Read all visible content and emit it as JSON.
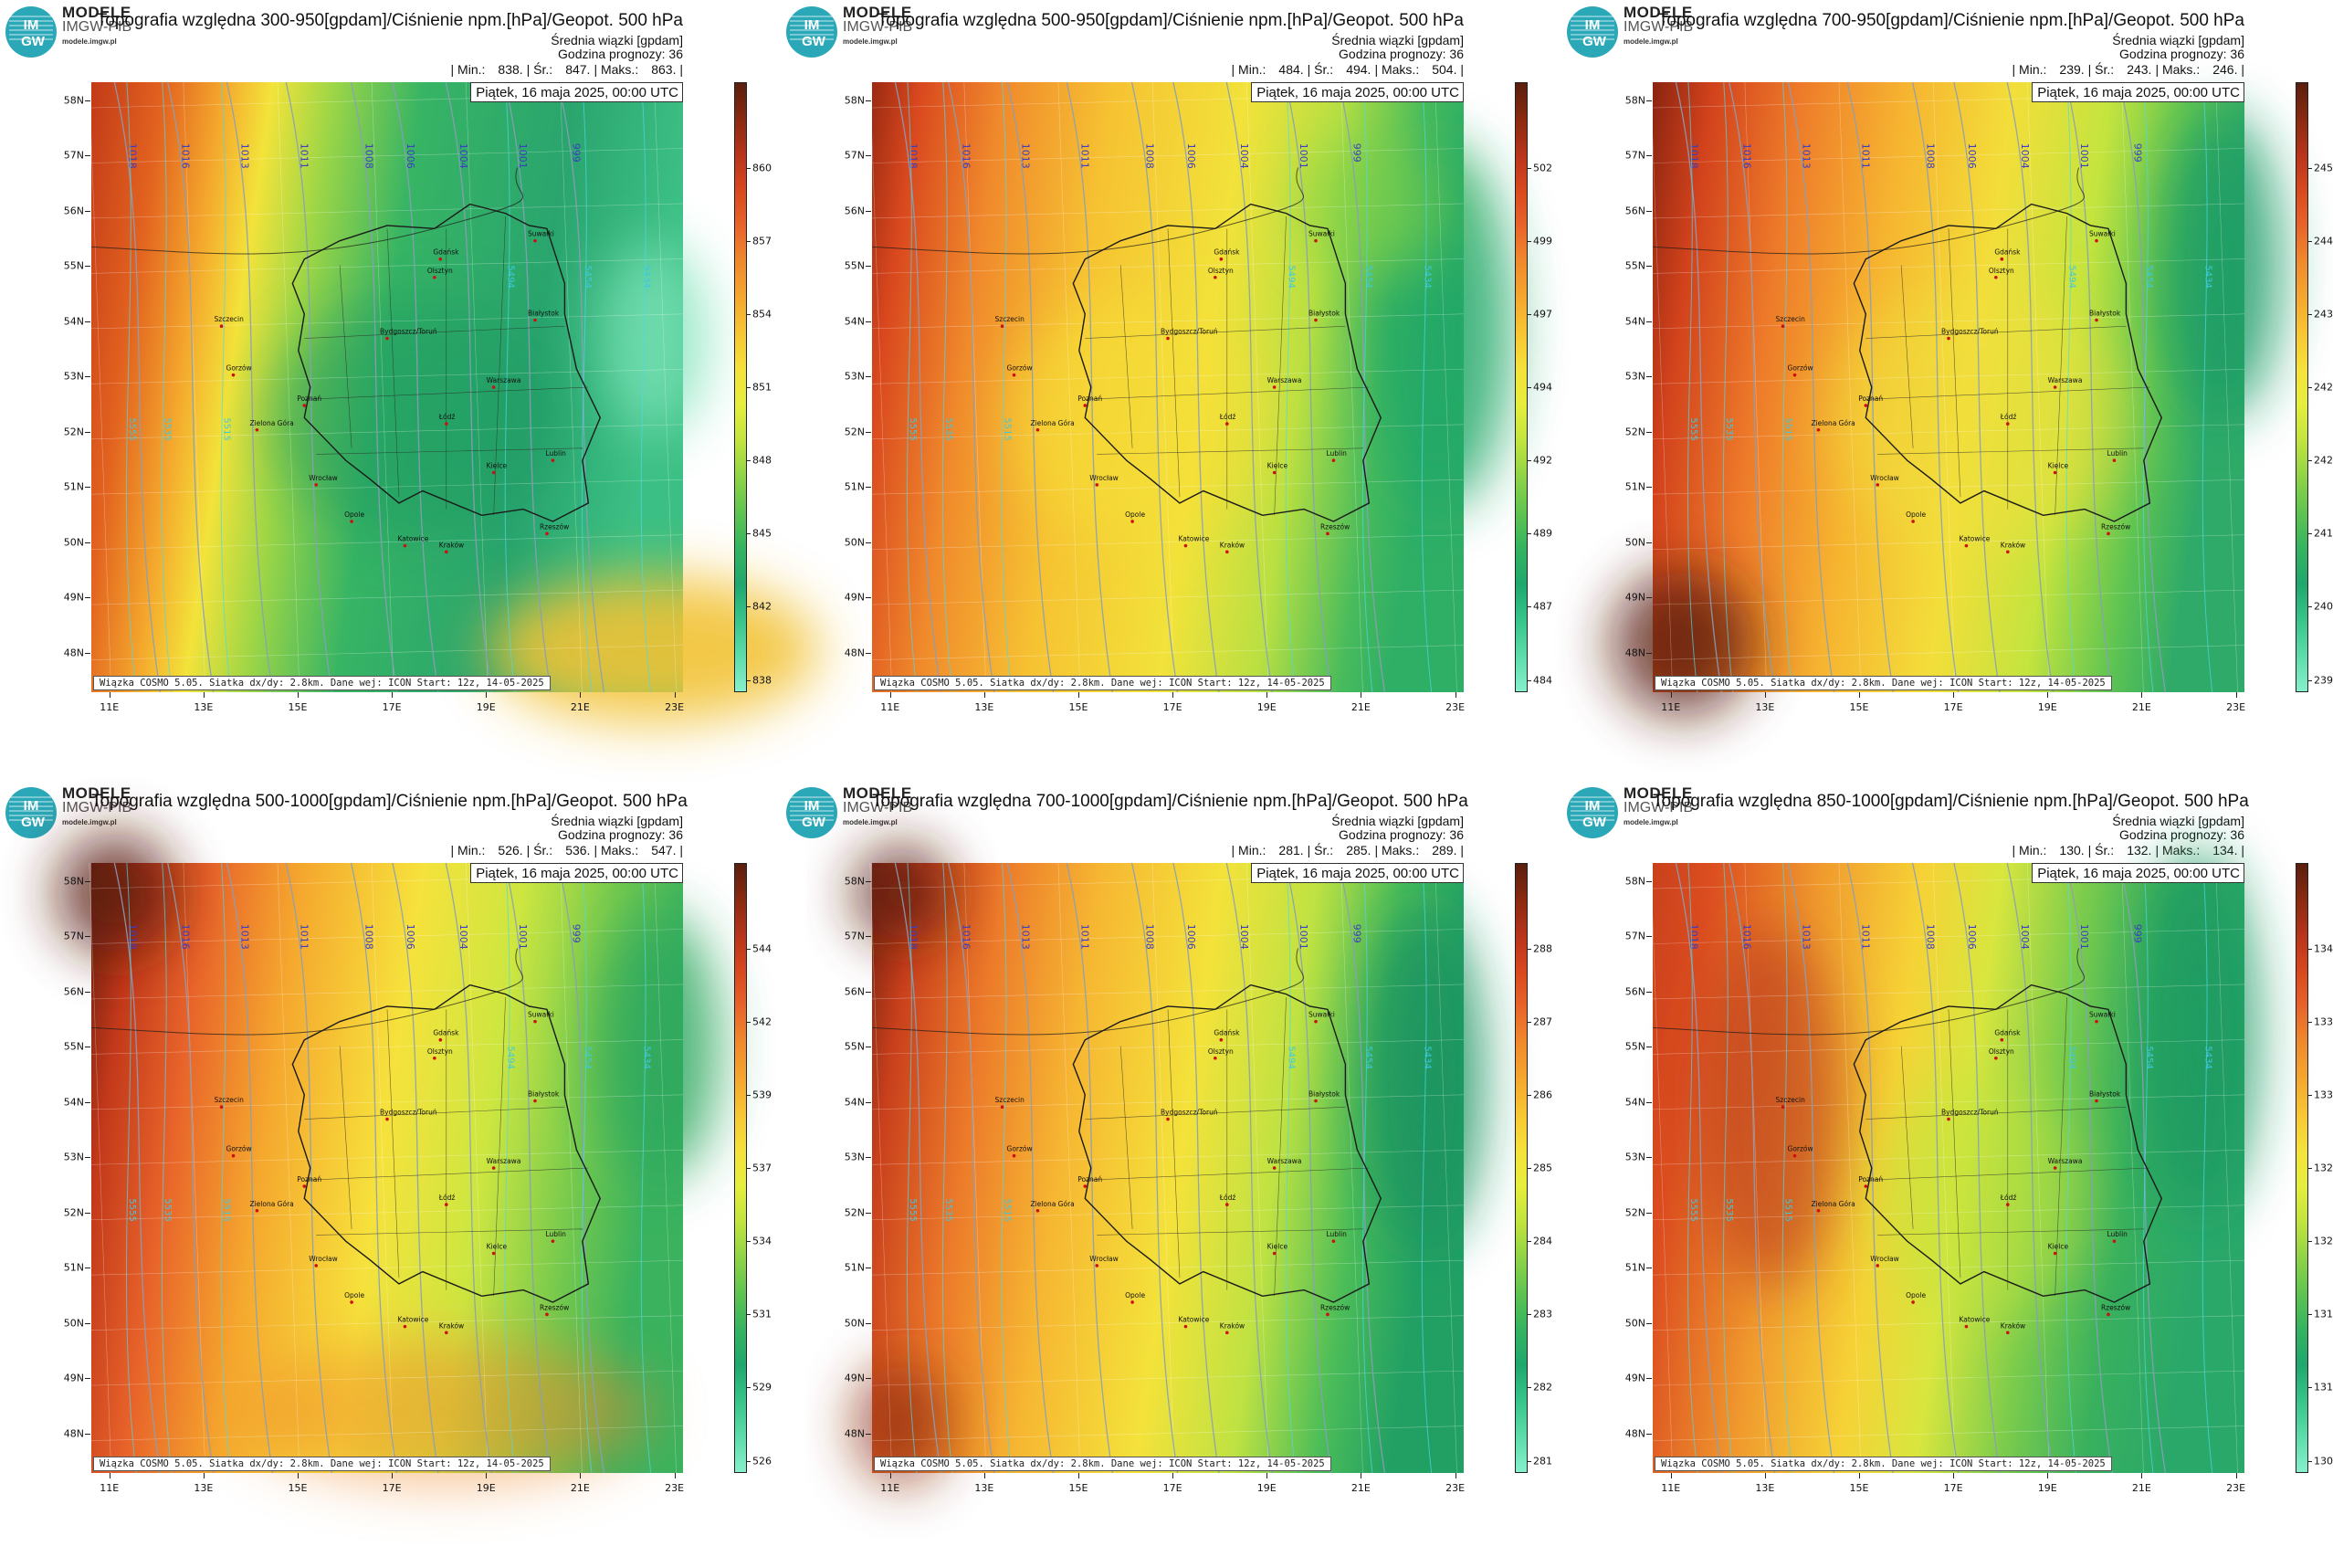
{
  "panels": [
    {
      "title": "Topografia względna 300-950[gpdam]/Ciśnienie npm.[hPa]/Geopot. 500 hPa",
      "subtitle": "Średnia wiązki [gpdam]",
      "forecast_hour": "Godzina prognozy: 36",
      "stats": {
        "min_label": "| Min.:",
        "min": "838.",
        "avg_label": "| Śr.:",
        "avg": "847.",
        "max_label": "| Maks.:",
        "max": "863. |"
      },
      "colorbar_ticks": [
        "860",
        "857",
        "854",
        "851",
        "848",
        "845",
        "842",
        "838"
      ],
      "scheme": "p1"
    },
    {
      "title": "Topografia względna 500-950[gpdam]/Ciśnienie npm.[hPa]/Geopot. 500 hPa",
      "subtitle": "Średnia wiązki [gpdam]",
      "forecast_hour": "Godzina prognozy: 36",
      "stats": {
        "min_label": "| Min.:",
        "min": "484.",
        "avg_label": "| Śr.:",
        "avg": "494.",
        "max_label": "| Maks.:",
        "max": "504. |"
      },
      "colorbar_ticks": [
        "502",
        "499",
        "497",
        "494",
        "492",
        "489",
        "487",
        "484"
      ],
      "scheme": "p2"
    },
    {
      "title": "Topografia względna 700-950[gpdam]/Ciśnienie npm.[hPa]/Geopot. 500 hPa",
      "subtitle": "Średnia wiązki [gpdam]",
      "forecast_hour": "Godzina prognozy: 36",
      "stats": {
        "min_label": "| Min.:",
        "min": "239.",
        "avg_label": "| Śr.:",
        "avg": "243.",
        "max_label": "| Maks.:",
        "max": "246. |"
      },
      "colorbar_ticks": [
        "245",
        "244",
        "243",
        "242",
        "242",
        "241",
        "240",
        "239"
      ],
      "scheme": "p3"
    },
    {
      "title": "Topografia względna 500-1000[gpdam]/Ciśnienie npm.[hPa]/Geopot. 500 hPa",
      "subtitle": "Średnia wiązki [gpdam]",
      "forecast_hour": "Godzina prognozy: 36",
      "stats": {
        "min_label": "| Min.:",
        "min": "526.",
        "avg_label": "| Śr.:",
        "avg": "536.",
        "max_label": "| Maks.:",
        "max": "547. |"
      },
      "colorbar_ticks": [
        "544",
        "542",
        "539",
        "537",
        "534",
        "531",
        "529",
        "526"
      ],
      "scheme": "p4"
    },
    {
      "title": "Topografia względna 700-1000[gpdam]/Ciśnienie npm.[hPa]/Geopot. 500 hPa",
      "subtitle": "Średnia wiązki [gpdam]",
      "forecast_hour": "Godzina prognozy: 36",
      "stats": {
        "min_label": "| Min.:",
        "min": "281.",
        "avg_label": "| Śr.:",
        "avg": "285.",
        "max_label": "| Maks.:",
        "max": "289. |"
      },
      "colorbar_ticks": [
        "288",
        "287",
        "286",
        "285",
        "284",
        "283",
        "282",
        "281"
      ],
      "scheme": "p5"
    },
    {
      "title": "Topografia względna 850-1000[gpdam]/Ciśnienie npm.[hPa]/Geopot. 500 hPa",
      "subtitle": "Średnia wiązki [gpdam]",
      "forecast_hour": "Godzina prognozy: 36",
      "stats": {
        "min_label": "| Min.:",
        "min": "130.",
        "avg_label": "| Śr.:",
        "avg": "132.",
        "max_label": "| Maks.:",
        "max": "134. |"
      },
      "colorbar_ticks": [
        "134",
        "133",
        "133",
        "132",
        "132",
        "131",
        "131",
        "130"
      ],
      "scheme": "p6"
    }
  ],
  "common": {
    "brand_line1": "MODELE",
    "brand_line2": "IMGW-PIB",
    "brand_line3": "modele.imgw.pl",
    "logo_text_top": "IM",
    "logo_text_bottom": "GW",
    "date": "Piątek, 16 maja 2025, 00:00 UTC",
    "credit": "Wiązka COSMO 5.05. Siatka dx/dy: 2.8km. Dane wej: ICON Start: 12z, 14-05-2025",
    "lat_labels": [
      "58N",
      "57N",
      "56N",
      "55N",
      "54N",
      "53N",
      "52N",
      "51N",
      "50N",
      "49N",
      "48N"
    ],
    "lon_labels": [
      "11E",
      "13E",
      "15E",
      "17E",
      "19E",
      "21E",
      "23E"
    ],
    "cities": [
      "Gdańsk",
      "Olsztyn",
      "Białystok",
      "Szczecin",
      "Bydgoszcz/Toruń",
      "Gorzów",
      "Poznań",
      "Warszawa",
      "Łódź",
      "Zielona Góra",
      "Lublin",
      "Wrocław",
      "Kielce",
      "Opole",
      "Katowice",
      "Kraków",
      "Rzeszów",
      "Suwałki"
    ],
    "isobar_labels": [
      "1018",
      "1016",
      "1013",
      "1011",
      "1008",
      "1006",
      "1004",
      "1001",
      "999"
    ],
    "geopot_labels": [
      "5555",
      "5535",
      "5515",
      "5494",
      "5454",
      "5434"
    ]
  },
  "colors": {
    "colorbar": [
      "#5a1e0e",
      "#8a2a10",
      "#b8341a",
      "#d9481e",
      "#e8642a",
      "#f08a2c",
      "#f5a72e",
      "#f8c632",
      "#f5e23a",
      "#e6ee3c",
      "#c2e43e",
      "#8fd446",
      "#5fc450",
      "#34b460",
      "#1fa86e",
      "#36c48a",
      "#5cdcaa",
      "#86f0cc"
    ]
  }
}
